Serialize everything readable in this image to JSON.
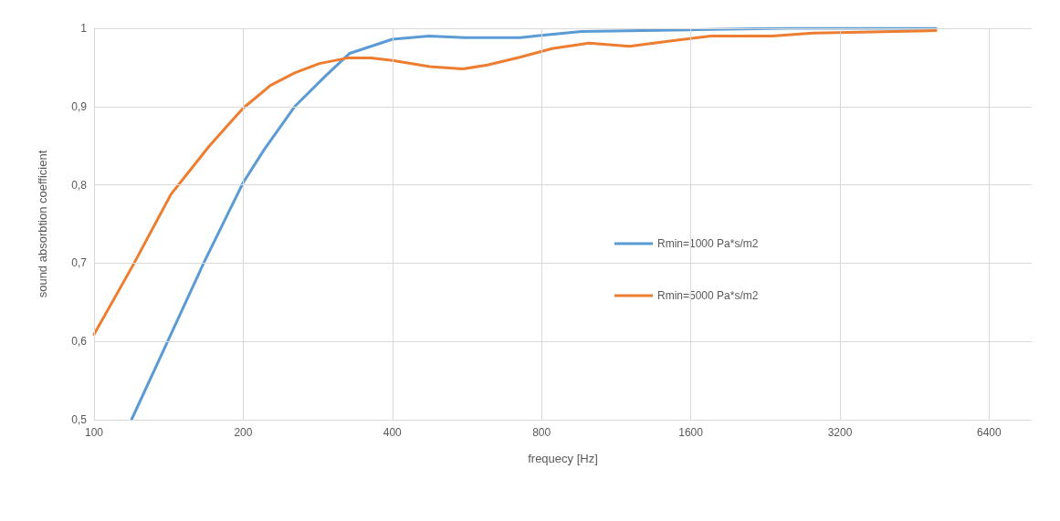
{
  "chart_data": {
    "type": "line",
    "xlabel": "frequecy [Hz]",
    "ylabel": "sound absorbtion coefficient",
    "log": "x",
    "xlim": [
      100,
      7800
    ],
    "xticks": [
      100,
      200,
      400,
      800,
      1600,
      3200,
      6400
    ],
    "ylim": [
      0.5,
      1
    ],
    "yticks": [
      {
        "value": 0.5,
        "label": "0,5"
      },
      {
        "value": 0.6,
        "label": "0,6"
      },
      {
        "value": 0.7,
        "label": "0,7"
      },
      {
        "value": 0.8,
        "label": "0,8"
      },
      {
        "value": 0.9,
        "label": "0,9"
      },
      {
        "value": 1,
        "label": "1"
      }
    ],
    "grid": true,
    "legend": "right",
    "marker": "none",
    "line_style": "solid",
    "series": [
      {
        "name": "Rmin=1000 Pa*s/m2",
        "color": "#5b9bd5",
        "x": [
          119,
          141,
          167,
          200,
          221,
          254,
          293,
          328,
          400,
          474,
          560,
          724,
          800,
          963,
          1590,
          2500,
          5000
        ],
        "values": [
          0.5,
          0.601,
          0.702,
          0.803,
          0.846,
          0.9,
          0.939,
          0.968,
          0.986,
          0.99,
          0.988,
          0.988,
          0.991,
          0.996,
          0.998,
          1.0,
          1.0
        ]
      },
      {
        "name": "Rmin=5000 Pa*s/m2",
        "color": "#ed7d31",
        "x": [
          100,
          120,
          143,
          171,
          200,
          227,
          254,
          285,
          324,
          362,
          400,
          476,
          554,
          622,
          723,
          840,
          997,
          1204,
          1427,
          1756,
          2333,
          2824,
          5000
        ],
        "values": [
          0.609,
          0.698,
          0.788,
          0.85,
          0.898,
          0.927,
          0.943,
          0.955,
          0.962,
          0.962,
          0.959,
          0.951,
          0.948,
          0.953,
          0.963,
          0.974,
          0.981,
          0.977,
          0.983,
          0.99,
          0.99,
          0.994,
          0.997
        ]
      }
    ]
  }
}
